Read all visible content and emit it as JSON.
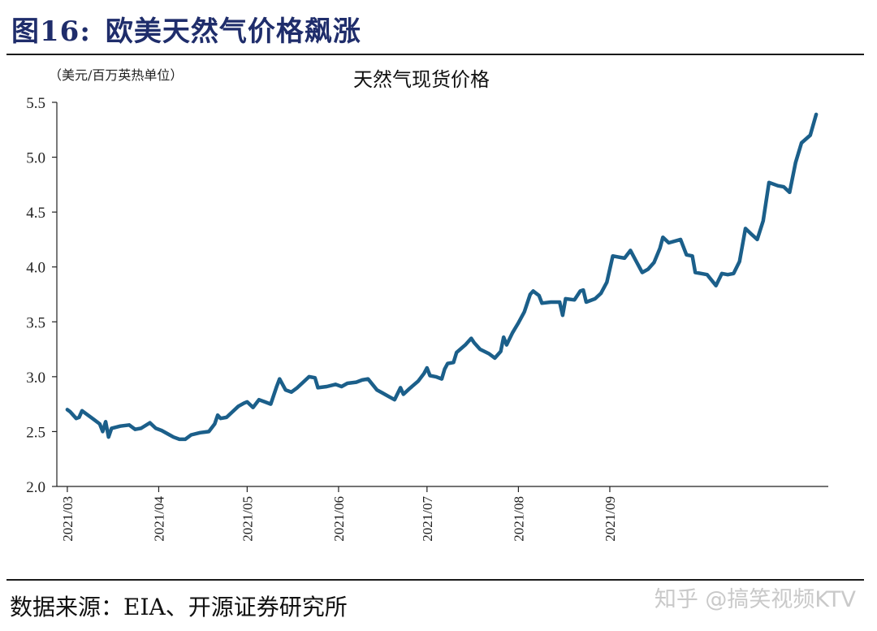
{
  "header": {
    "figure_no": "图16:",
    "title": "欧美天然气价格飙涨"
  },
  "source": "数据来源：EIA、开源证券研究所",
  "watermark": "知乎 @搞笑视频KTV",
  "colors": {
    "title": "#1f2d6b",
    "line": "#1b5f8a",
    "axis": "#222222"
  },
  "chart_data": {
    "type": "line",
    "title": "天然气现货价格",
    "unit_label": "（美元/百万英热单位）",
    "xlabel": "",
    "ylabel": "",
    "ylim": [
      2.0,
      5.5
    ],
    "yticks": [
      "2.0",
      "2.5",
      "3.0",
      "3.5",
      "4.0",
      "4.5",
      "5.0",
      "5.5"
    ],
    "xticks": [
      "2021/03",
      "2021/04",
      "2021/05",
      "2021/06",
      "2021/07",
      "2021/08",
      "2021/09"
    ],
    "grid": false,
    "legend": "none",
    "series": [
      {
        "values": [
          [
            "2021-03-01",
            2.7
          ],
          [
            "2021-03-02",
            2.68
          ],
          [
            "2021-03-03",
            2.65
          ],
          [
            "2021-03-04",
            2.62
          ],
          [
            "2021-03-05",
            2.63
          ],
          [
            "2021-03-06",
            2.69
          ],
          [
            "2021-03-08",
            2.65
          ],
          [
            "2021-03-10",
            2.61
          ],
          [
            "2021-03-12",
            2.57
          ],
          [
            "2021-03-13",
            2.5
          ],
          [
            "2021-03-14",
            2.59
          ],
          [
            "2021-03-15",
            2.45
          ],
          [
            "2021-03-16",
            2.53
          ],
          [
            "2021-03-19",
            2.55
          ],
          [
            "2021-03-22",
            2.56
          ],
          [
            "2021-03-24",
            2.52
          ],
          [
            "2021-03-26",
            2.53
          ],
          [
            "2021-03-29",
            2.58
          ],
          [
            "2021-03-31",
            2.53
          ],
          [
            "2021-04-02",
            2.51
          ],
          [
            "2021-04-04",
            2.48
          ],
          [
            "2021-04-06",
            2.45
          ],
          [
            "2021-04-08",
            2.43
          ],
          [
            "2021-04-10",
            2.43
          ],
          [
            "2021-04-12",
            2.47
          ],
          [
            "2021-04-15",
            2.49
          ],
          [
            "2021-04-18",
            2.5
          ],
          [
            "2021-04-20",
            2.57
          ],
          [
            "2021-04-21",
            2.65
          ],
          [
            "2021-04-22",
            2.62
          ],
          [
            "2021-04-24",
            2.63
          ],
          [
            "2021-04-26",
            2.68
          ],
          [
            "2021-04-28",
            2.73
          ],
          [
            "2021-04-30",
            2.76
          ],
          [
            "2021-05-01",
            2.77
          ],
          [
            "2021-05-03",
            2.72
          ],
          [
            "2021-05-05",
            2.79
          ],
          [
            "2021-05-07",
            2.77
          ],
          [
            "2021-05-09",
            2.75
          ],
          [
            "2021-05-11",
            2.91
          ],
          [
            "2021-05-12",
            2.98
          ],
          [
            "2021-05-14",
            2.88
          ],
          [
            "2021-05-16",
            2.86
          ],
          [
            "2021-05-18",
            2.9
          ],
          [
            "2021-05-20",
            2.95
          ],
          [
            "2021-05-22",
            3.0
          ],
          [
            "2021-05-24",
            2.99
          ],
          [
            "2021-05-25",
            2.9
          ],
          [
            "2021-05-28",
            2.91
          ],
          [
            "2021-05-31",
            2.93
          ],
          [
            "2021-06-02",
            2.91
          ],
          [
            "2021-06-04",
            2.94
          ],
          [
            "2021-06-07",
            2.95
          ],
          [
            "2021-06-09",
            2.97
          ],
          [
            "2021-06-11",
            2.98
          ],
          [
            "2021-06-14",
            2.88
          ],
          [
            "2021-06-16",
            2.85
          ],
          [
            "2021-06-18",
            2.82
          ],
          [
            "2021-06-20",
            2.79
          ],
          [
            "2021-06-22",
            2.9
          ],
          [
            "2021-06-23",
            2.84
          ],
          [
            "2021-06-25",
            2.89
          ],
          [
            "2021-06-28",
            2.96
          ],
          [
            "2021-06-30",
            3.03
          ],
          [
            "2021-07-01",
            3.08
          ],
          [
            "2021-07-02",
            3.01
          ],
          [
            "2021-07-04",
            3.0
          ],
          [
            "2021-07-06",
            2.98
          ],
          [
            "2021-07-07",
            3.07
          ],
          [
            "2021-07-08",
            3.12
          ],
          [
            "2021-07-10",
            3.13
          ],
          [
            "2021-07-11",
            3.22
          ],
          [
            "2021-07-14",
            3.29
          ],
          [
            "2021-07-16",
            3.35
          ],
          [
            "2021-07-17",
            3.31
          ],
          [
            "2021-07-19",
            3.25
          ],
          [
            "2021-07-22",
            3.21
          ],
          [
            "2021-07-24",
            3.17
          ],
          [
            "2021-07-26",
            3.23
          ],
          [
            "2021-07-27",
            3.36
          ],
          [
            "2021-07-28",
            3.29
          ],
          [
            "2021-07-30",
            3.4
          ],
          [
            "2021-08-01",
            3.49
          ],
          [
            "2021-08-03",
            3.59
          ],
          [
            "2021-08-05",
            3.75
          ],
          [
            "2021-08-06",
            3.78
          ],
          [
            "2021-08-08",
            3.74
          ],
          [
            "2021-08-09",
            3.67
          ],
          [
            "2021-08-12",
            3.68
          ],
          [
            "2021-08-15",
            3.68
          ],
          [
            "2021-08-16",
            3.56
          ],
          [
            "2021-08-17",
            3.71
          ],
          [
            "2021-08-20",
            3.7
          ],
          [
            "2021-08-22",
            3.78
          ],
          [
            "2021-08-23",
            3.79
          ],
          [
            "2021-08-24",
            3.68
          ],
          [
            "2021-08-27",
            3.71
          ],
          [
            "2021-08-29",
            3.76
          ],
          [
            "2021-08-31",
            3.86
          ],
          [
            "2021-09-02",
            4.1
          ],
          [
            "2021-09-04",
            4.09
          ],
          [
            "2021-09-06",
            4.08
          ],
          [
            "2021-09-08",
            4.15
          ],
          [
            "2021-09-10",
            4.05
          ],
          [
            "2021-09-12",
            3.95
          ],
          [
            "2021-09-14",
            3.98
          ],
          [
            "2021-09-16",
            4.04
          ],
          [
            "2021-09-18",
            4.17
          ],
          [
            "2021-09-19",
            4.27
          ],
          [
            "2021-09-21",
            4.22
          ],
          [
            "2021-09-25",
            4.25
          ],
          [
            "2021-09-27",
            4.11
          ],
          [
            "2021-09-29",
            4.1
          ],
          [
            "2021-09-30",
            3.95
          ],
          [
            "2021-10-02",
            3.94
          ],
          [
            "2021-10-04",
            3.93
          ],
          [
            "2021-10-07",
            3.83
          ],
          [
            "2021-10-09",
            3.94
          ],
          [
            "2021-10-11",
            3.93
          ],
          [
            "2021-10-13",
            3.94
          ],
          [
            "2021-10-15",
            4.05
          ],
          [
            "2021-10-17",
            4.35
          ],
          [
            "2021-10-19",
            4.3
          ],
          [
            "2021-10-21",
            4.25
          ],
          [
            "2021-10-23",
            4.42
          ],
          [
            "2021-10-25",
            4.77
          ],
          [
            "2021-10-28",
            4.74
          ],
          [
            "2021-10-30",
            4.73
          ],
          [
            "2021-11-01",
            4.68
          ],
          [
            "2021-11-03",
            4.95
          ],
          [
            "2021-11-05",
            5.13
          ],
          [
            "2021-11-08",
            5.2
          ],
          [
            "2021-11-10",
            5.39
          ]
        ]
      }
    ]
  }
}
